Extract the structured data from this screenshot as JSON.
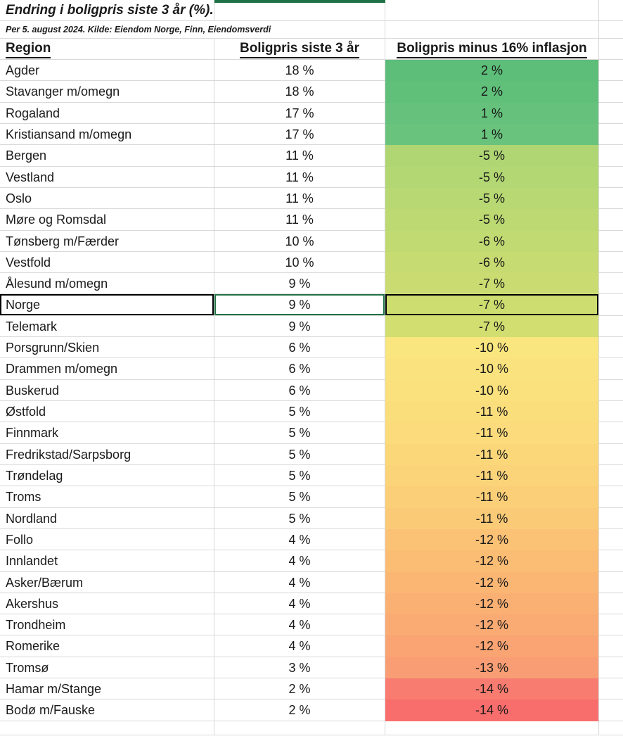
{
  "sheet": {
    "title": "Endring i boligpris siste 3 år (%).",
    "source": "Per 5. august 2024. Kilde: Eiendom Norge, Finn, Eiendomsverdi",
    "columns": [
      {
        "label": "Region"
      },
      {
        "label": "Boligpris siste 3 år"
      },
      {
        "label": "Boligpris minus 16% inflasjon"
      }
    ],
    "rows": [
      {
        "region": "Agder",
        "price": "18 %",
        "adjusted": "2 %",
        "fill": "#5CBE78"
      },
      {
        "region": "Stavanger m/omegn",
        "price": "18 %",
        "adjusted": "2 %",
        "fill": "#60C07A"
      },
      {
        "region": "Rogaland",
        "price": "17 %",
        "adjusted": "1 %",
        "fill": "#65C17B"
      },
      {
        "region": "Kristiansand m/omegn",
        "price": "17 %",
        "adjusted": "1 %",
        "fill": "#69C37D"
      },
      {
        "region": "Bergen",
        "price": "11 %",
        "adjusted": "-5 %",
        "fill": "#AFD673"
      },
      {
        "region": "Vestland",
        "price": "11 %",
        "adjusted": "-5 %",
        "fill": "#B3D773"
      },
      {
        "region": "Oslo",
        "price": "11 %",
        "adjusted": "-5 %",
        "fill": "#B7D873"
      },
      {
        "region": "Møre og Romsdal",
        "price": "11 %",
        "adjusted": "-5 %",
        "fill": "#BCD972"
      },
      {
        "region": "Tønsberg m/Færder",
        "price": "10 %",
        "adjusted": "-6 %",
        "fill": "#C2DA72"
      },
      {
        "region": "Vestfold",
        "price": "10 %",
        "adjusted": "-6 %",
        "fill": "#C6DB71"
      },
      {
        "region": "Ålesund m/omegn",
        "price": "9 %",
        "adjusted": "-7 %",
        "fill": "#CADC71"
      },
      {
        "region": "Norge",
        "price": "9 %",
        "adjusted": "-7 %",
        "fill": "#CEDD70",
        "selected": true
      },
      {
        "region": "Telemark",
        "price": "9 %",
        "adjusted": "-7 %",
        "fill": "#D2DE70"
      },
      {
        "region": "Porsgrunn/Skien",
        "price": "6 %",
        "adjusted": "-10 %",
        "fill": "#F9E67F"
      },
      {
        "region": "Drammen m/omegn",
        "price": "6 %",
        "adjusted": "-10 %",
        "fill": "#FAE37E"
      },
      {
        "region": "Buskerud",
        "price": "6 %",
        "adjusted": "-10 %",
        "fill": "#FAE17D"
      },
      {
        "region": "Østfold",
        "price": "5 %",
        "adjusted": "-11 %",
        "fill": "#FBDE7C"
      },
      {
        "region": "Finnmark",
        "price": "5 %",
        "adjusted": "-11 %",
        "fill": "#FBDB7B"
      },
      {
        "region": "Fredrikstad/Sarpsborg",
        "price": "5 %",
        "adjusted": "-11 %",
        "fill": "#FBD77A"
      },
      {
        "region": "Trøndelag",
        "price": "5 %",
        "adjusted": "-11 %",
        "fill": "#FBD379"
      },
      {
        "region": "Troms",
        "price": "5 %",
        "adjusted": "-11 %",
        "fill": "#FBCF78"
      },
      {
        "region": "Nordland",
        "price": "5 %",
        "adjusted": "-11 %",
        "fill": "#FBCA77"
      },
      {
        "region": "Follo",
        "price": "4 %",
        "adjusted": "-12 %",
        "fill": "#FBC175"
      },
      {
        "region": "Innlandet",
        "price": "4 %",
        "adjusted": "-12 %",
        "fill": "#FBBC74"
      },
      {
        "region": "Asker/Bærum",
        "price": "4 %",
        "adjusted": "-12 %",
        "fill": "#FBB674"
      },
      {
        "region": "Akershus",
        "price": "4 %",
        "adjusted": "-12 %",
        "fill": "#FAB073"
      },
      {
        "region": "Trondheim",
        "price": "4 %",
        "adjusted": "-12 %",
        "fill": "#FAAA73"
      },
      {
        "region": "Romerike",
        "price": "4 %",
        "adjusted": "-12 %",
        "fill": "#FAA473"
      },
      {
        "region": "Tromsø",
        "price": "3 %",
        "adjusted": "-13 %",
        "fill": "#F99D74"
      },
      {
        "region": "Hamar m/Stange",
        "price": "2 %",
        "adjusted": "-14 %",
        "fill": "#F87C70"
      },
      {
        "region": "Bodø m/Fauske",
        "price": "2 %",
        "adjusted": "-14 %",
        "fill": "#F86E6D"
      }
    ],
    "selection": {
      "active_row": "Norge",
      "range_border_color": "#000000",
      "active_cell_border_color": "#217346",
      "column_indicator_color": "#1E7145"
    },
    "colors": {
      "gridline": "#D9D9D9",
      "text": "#1A1A1A",
      "scale_green": "#63BE7B",
      "scale_yellow": "#FFEB84",
      "scale_red": "#F8696B"
    }
  }
}
